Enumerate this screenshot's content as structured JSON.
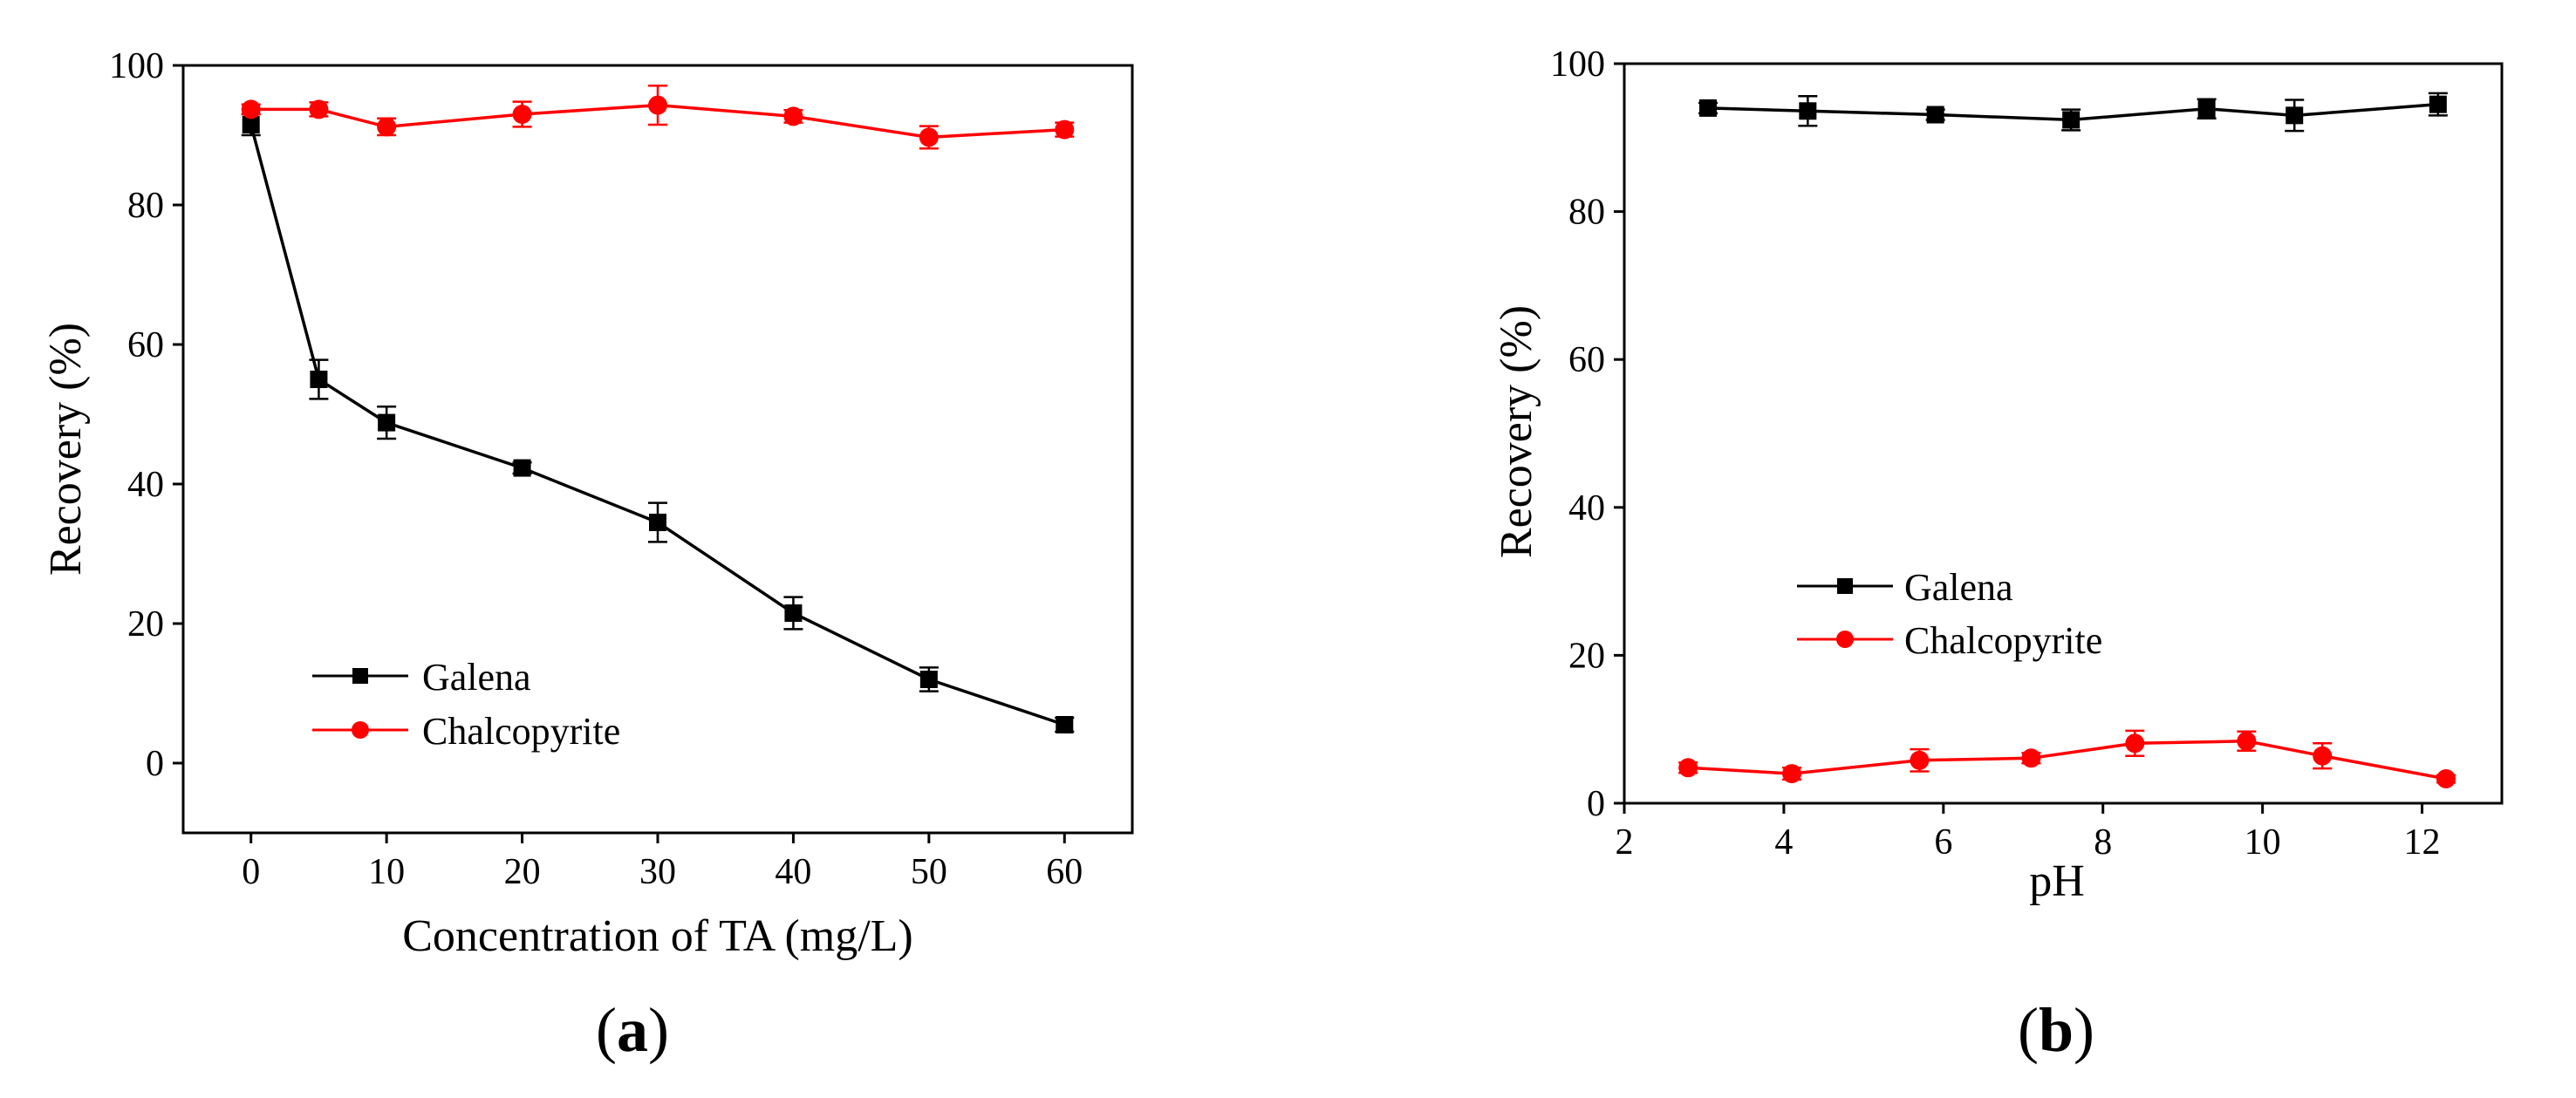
{
  "panels": [
    {
      "label_open": "(",
      "label_letter": "a",
      "label_close": ")",
      "chart_index": 0
    },
    {
      "label_open": "(",
      "label_letter": "b",
      "label_close": ")",
      "chart_index": 1
    }
  ],
  "chart_data": [
    {
      "type": "line",
      "title": "",
      "xlabel": "Concentration of TA (mg/L)",
      "ylabel": "Recovery (%)",
      "xlim": [
        -5,
        65
      ],
      "ylim": [
        -10,
        100
      ],
      "xticks": [
        0,
        10,
        20,
        30,
        40,
        50,
        60
      ],
      "yticks": [
        0,
        20,
        40,
        60,
        80,
        100
      ],
      "grid": false,
      "legend_position": "bottom-left",
      "series": [
        {
          "name": "Galena",
          "color": "#000000",
          "marker": "square",
          "x": [
            0,
            5,
            10,
            20,
            30,
            40,
            50,
            60
          ],
          "y": [
            91.5,
            55.0,
            48.8,
            42.3,
            34.5,
            21.5,
            12.0,
            5.5
          ],
          "err": [
            1.5,
            2.8,
            2.3,
            0.8,
            2.8,
            2.3,
            1.7,
            1.0
          ]
        },
        {
          "name": "Chalcopyrite",
          "color": "#ff0000",
          "marker": "circle",
          "x": [
            0,
            5,
            10,
            20,
            30,
            40,
            50,
            60
          ],
          "y": [
            93.7,
            93.7,
            91.2,
            93.0,
            94.3,
            92.7,
            89.7,
            90.8
          ],
          "err": [
            0.7,
            1.0,
            1.2,
            1.8,
            2.8,
            0.9,
            1.6,
            1.0
          ]
        }
      ]
    },
    {
      "type": "line",
      "title": "",
      "xlabel": "pH",
      "ylabel": "Recovery (%)",
      "xlim": [
        2,
        13
      ],
      "ylim": [
        0,
        100
      ],
      "xticks": [
        2,
        4,
        6,
        8,
        10,
        12
      ],
      "yticks": [
        0,
        20,
        40,
        60,
        80,
        100
      ],
      "grid": false,
      "legend_position": "middle-left",
      "series": [
        {
          "name": "Galena",
          "color": "#000000",
          "marker": "square",
          "x": [
            3.05,
            4.3,
            5.9,
            7.6,
            9.3,
            10.4,
            12.2
          ],
          "y": [
            94.0,
            93.6,
            93.1,
            92.4,
            93.9,
            93.0,
            94.5
          ],
          "err": [
            0.7,
            2.0,
            0.7,
            1.4,
            1.3,
            2.1,
            1.5
          ]
        },
        {
          "name": "Chalcopyrite",
          "color": "#ff0000",
          "marker": "circle",
          "x": [
            2.8,
            4.1,
            5.7,
            7.1,
            8.4,
            9.8,
            10.75,
            12.3
          ],
          "y": [
            4.8,
            4.0,
            5.8,
            6.1,
            8.1,
            8.4,
            6.4,
            3.3
          ],
          "err": [
            0.7,
            0.8,
            1.5,
            0.7,
            1.7,
            1.3,
            1.7,
            0.5
          ]
        }
      ]
    }
  ]
}
